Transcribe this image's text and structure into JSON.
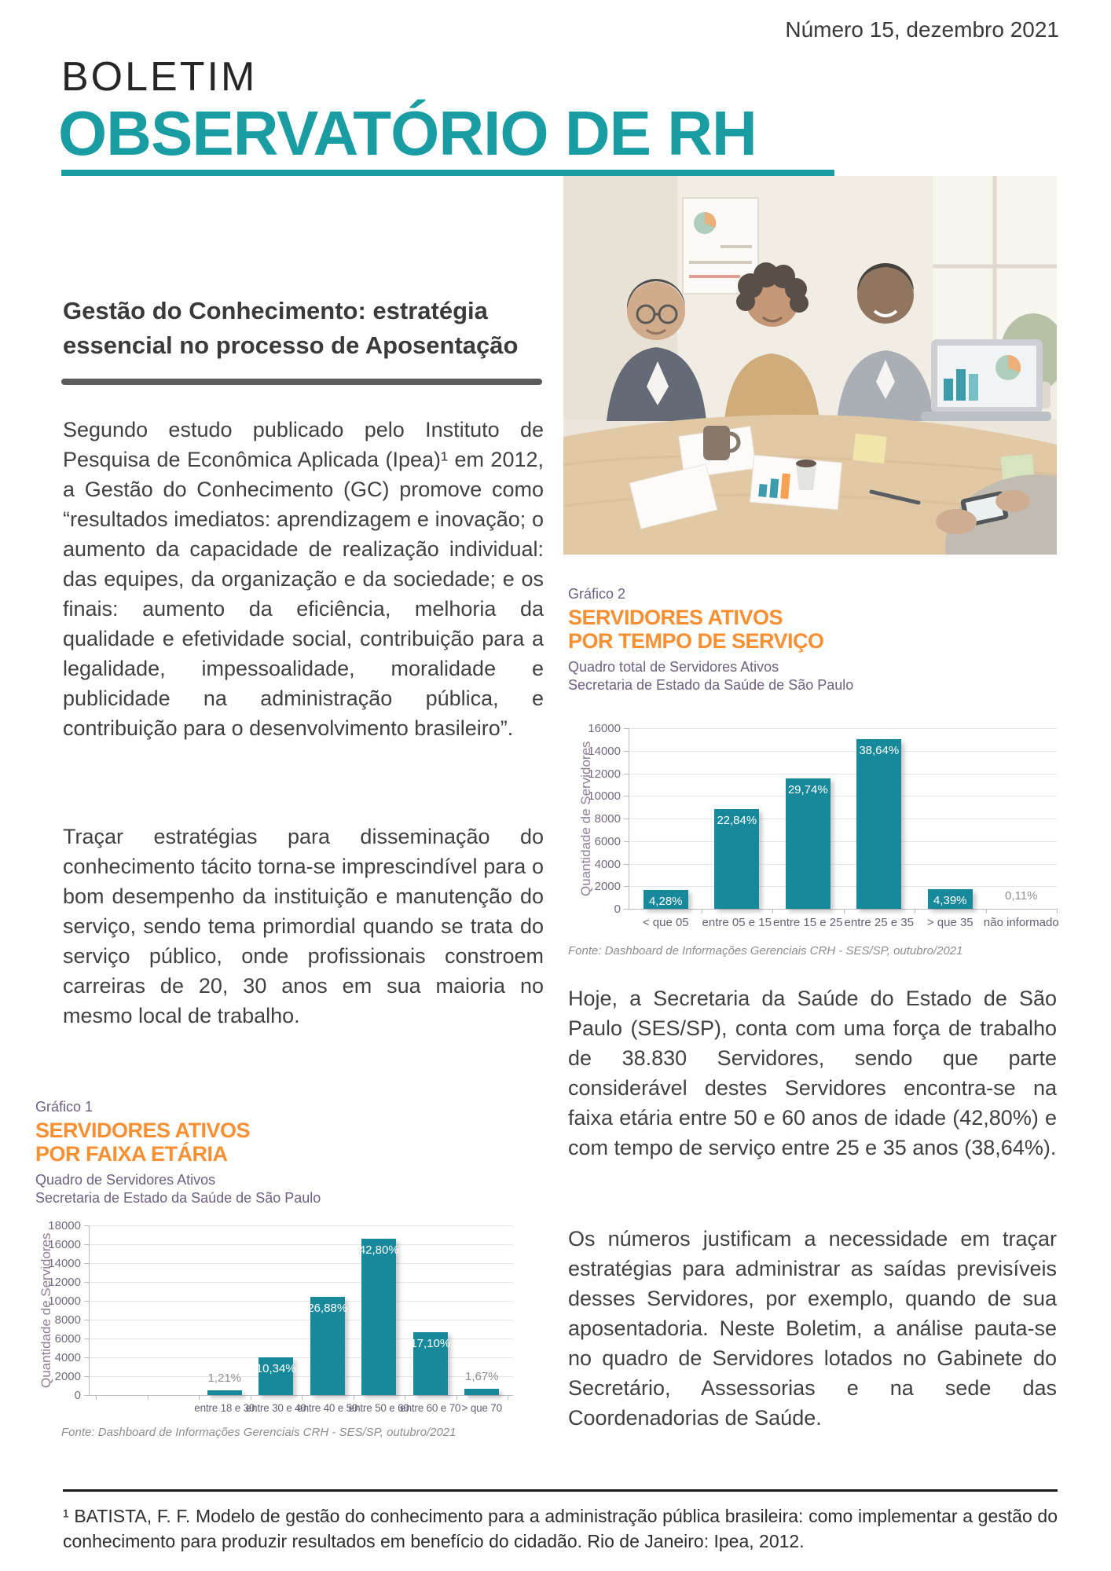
{
  "colors": {
    "teal": "#1A9CA3",
    "bar_teal": "#17899B",
    "orange": "#F78F33",
    "purple": "#6D6080",
    "heading_text": "#3A3A3A",
    "body_text": "#414141",
    "divider_gray": "#595959",
    "source_gray": "#8E8E8E",
    "footnote_rule": "#1A1A1A"
  },
  "header": {
    "issue": "Número 15, dezembro 2021",
    "title_line1": "BOLETIM",
    "title_line2": "OBSERVATÓRIO DE RH"
  },
  "article": {
    "heading_line1": "Gestão do Conhecimento: estratégia",
    "heading_line2": "essencial no processo de Aposentação",
    "paragraph1": "Segundo estudo publicado pelo Instituto de Pesquisa de Econômica Aplicada (Ipea)¹ em 2012, a Gestão do Conhecimento (GC) promove como “resultados imediatos: aprendizagem e inovação; o aumento da capacidade de realização individual: das equipes, da organização e da sociedade; e os finais: aumento da eficiência, melhoria da qualidade e efetividade social, contribuição para a legalidade, impessoalidade, moralidade e publicidade na administração pública, e contribuição para o desenvolvimento brasileiro”.",
    "paragraph2": "Traçar estratégias para disseminação do conhecimento tácito torna-se imprescindível para o bom desempenho da instituição e manutenção do serviço, sendo tema primordial quando se trata do serviço público, onde profissionais constroem carreiras de 20, 30 anos em sua maioria no mesmo local de trabalho.",
    "paragraph3": "Hoje, a Secretaria da Saúde do Estado de São Paulo (SES/SP), conta com uma força de trabalho de 38.830 Servidores, sendo que parte considerável destes Servidores encontra-se na faixa etária entre 50 e 60 anos de idade (42,80%) e com tempo de serviço entre 25 e 35 anos (38,64%).",
    "paragraph4": "Os números justificam a necessidade em traçar estratégias para administrar as saídas previsíveis desses Servidores, por exemplo, quando de sua aposentadoria. Neste Boletim, a análise pauta-se no quadro de Servidores lotados no Gabinete do Secretário, Assessorias e na sede das Coordenadorias de Saúde."
  },
  "footnote": "¹ BATISTA, F. F. Modelo de gestão do conhecimento para a administração pública brasileira: como implementar a gestão do conhecimento para produzir resultados em benefício do cidadão. Rio de Janeiro: Ipea, 2012.",
  "chart_data": [
    {
      "type": "bar",
      "label": "Gráfico 1",
      "title_line1": "SERVIDORES ATIVOS",
      "title_line2": "POR FAIXA ETÁRIA",
      "subtitle_line1": "Quadro de Servidores Ativos",
      "subtitle_line2": "Secretaria de Estado da Saúde de São Paulo",
      "ylabel": "Quantidade de Servidores",
      "xlabel": "",
      "ylim": [
        0,
        18000
      ],
      "ytick_step": 2000,
      "grid": true,
      "legend": "none",
      "categories": [
        "entre 18 e 30",
        "entre 30 e 40",
        "entre 40 e 50",
        "entre 50 e 60",
        "entre 60 e 70",
        "> que 70"
      ],
      "values": [
        470,
        4015,
        10437,
        16619,
        6640,
        648
      ],
      "value_labels": [
        "1,21%",
        "10,34%",
        "26,88%",
        "42,80%",
        "17,10%",
        "1,67%"
      ],
      "source": "Fonte: Dashboard de Informações Gerenciais CRH - SES/SP, outubro/2021"
    },
    {
      "type": "bar",
      "label": "Gráfico 2",
      "title_line1": "SERVIDORES ATIVOS",
      "title_line2": "POR TEMPO DE SERVIÇO",
      "subtitle_line1": "Quadro total de Servidores Ativos",
      "subtitle_line2": "Secretaria de Estado da Saúde de São Paulo",
      "ylabel": "Quantidade de Servidores",
      "xlabel": "",
      "ylim": [
        0,
        16000
      ],
      "ytick_step": 2000,
      "grid": true,
      "legend": "none",
      "categories": [
        "< que 05",
        "entre 05 e 15",
        "entre 15 e 25",
        "entre 25 e 35",
        "> que 35",
        "não informado"
      ],
      "values": [
        1662,
        8869,
        11548,
        15004,
        1705,
        43
      ],
      "value_labels": [
        "4,28%",
        "22,84%",
        "29,74%",
        "38,64%",
        "4,39%",
        "0,11%"
      ],
      "source": "Fonte: Dashboard de Informações Gerenciais CRH - SES/SP, outubro/2021"
    }
  ]
}
